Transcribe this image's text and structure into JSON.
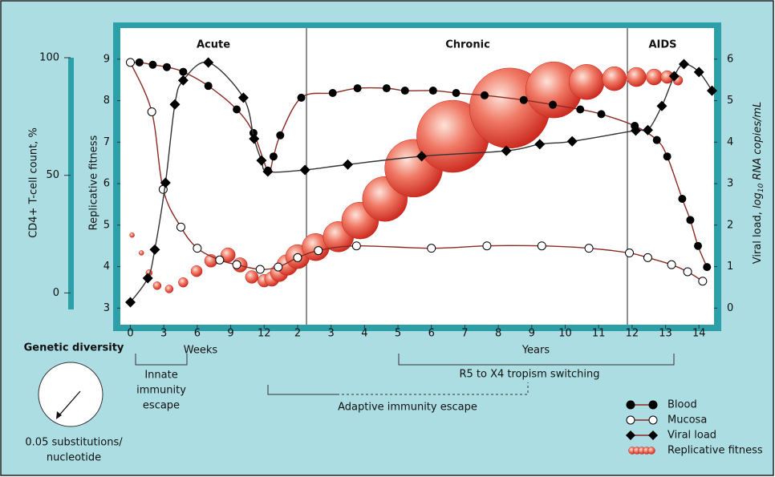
{
  "chart_data": {
    "type": "line",
    "phases": [
      "Acute",
      "Chronic",
      "AIDS"
    ],
    "xlabel_weeks": "Weeks",
    "xlabel_years": "Years",
    "ylabel": "Replicative fitness",
    "y2label": [
      "Viral load, ",
      "log",
      "10",
      " RNA copies/mL"
    ],
    "y3label": "CD4+ T-cell count, %",
    "xlim": [
      -0.3,
      17.45
    ],
    "xticks": [
      0,
      {
        "value": 1,
        "label": "3"
      },
      {
        "value": 2,
        "label": "6"
      },
      {
        "value": 3,
        "label": "9"
      },
      {
        "value": 4,
        "label": "12"
      },
      {
        "value": 5,
        "label": "2"
      },
      {
        "value": 6,
        "label": "3"
      },
      {
        "value": 7,
        "label": "4"
      },
      {
        "value": 8,
        "label": "5"
      },
      {
        "value": 9,
        "label": "6"
      },
      {
        "value": 10,
        "label": "7"
      },
      {
        "value": 11,
        "label": "8"
      },
      {
        "value": 12,
        "label": "9"
      },
      {
        "value": 13,
        "label": "10"
      },
      {
        "value": 14,
        "label": "11"
      },
      {
        "value": 15,
        "label": "12"
      },
      {
        "value": 16,
        "label": "13"
      },
      {
        "value": 17,
        "label": "14"
      }
    ],
    "ylim": [
      2.6,
      9.75
    ],
    "yticks": [
      3,
      4,
      5,
      6,
      7,
      8,
      9
    ],
    "y2lim": [
      -0.4,
      6.75
    ],
    "y2ticks": [
      0,
      1,
      2,
      3,
      4,
      5,
      6
    ],
    "y3lim": [
      -13.5,
      112.6
    ],
    "y3ticks": [
      0,
      50,
      100
    ],
    "series": [
      {
        "name": "Blood",
        "color": "#000000",
        "marker": "filled-circle",
        "axis": "y3",
        "x": [
          0,
          0.27,
          0.67,
          1.09,
          1.58,
          2.33,
          3.18,
          3.68,
          4.11,
          4.28,
          4.48,
          5.11,
          6.05,
          6.79,
          7.66,
          8.21,
          9.05,
          9.74,
          10.59,
          11.76,
          12.63,
          13.45,
          14.08,
          15.08,
          15.74,
          16.05,
          16.5,
          16.74,
          16.97,
          17.24
        ],
        "values": [
          98,
          98,
          97,
          96,
          94,
          88,
          78,
          68,
          52,
          58,
          67,
          83,
          85,
          87,
          87,
          86,
          86,
          85,
          84,
          82,
          80,
          78,
          76,
          71,
          65,
          58,
          40,
          31,
          20,
          11
        ]
      },
      {
        "name": "Mucosa",
        "color": "#000000",
        "marker": "open-circle",
        "axis": "y3",
        "x": [
          0,
          0.64,
          0.98,
          1.51,
          2.0,
          2.67,
          3.18,
          3.88,
          4.42,
          5.0,
          5.62,
          6.76,
          9.0,
          10.66,
          12.3,
          13.71,
          14.92,
          15.47,
          16.18,
          16.66,
          17.11
        ],
        "values": [
          98,
          77,
          44,
          28,
          19,
          14,
          12,
          10,
          11,
          15,
          18,
          20,
          19,
          20,
          20,
          19,
          17,
          15,
          12,
          9,
          5
        ]
      },
      {
        "name": "Viral load",
        "color": "#000000",
        "marker": "diamond",
        "axis": "y2",
        "x": [
          0,
          0.52,
          0.73,
          1.05,
          1.33,
          1.58,
          2.33,
          3.38,
          3.7,
          3.92,
          4.11,
          5.22,
          6.5,
          8.71,
          11.24,
          12.24,
          13.21,
          15.11,
          15.47,
          15.89,
          16.26,
          16.55,
          17.0,
          17.39
        ],
        "values": [
          0.14,
          0.72,
          1.41,
          3.02,
          4.91,
          5.49,
          5.92,
          5.07,
          4.08,
          3.56,
          3.29,
          3.33,
          3.46,
          3.66,
          3.79,
          3.95,
          4.02,
          4.28,
          4.29,
          4.87,
          5.59,
          5.88,
          5.69,
          5.24
        ]
      },
      {
        "name": "Replicative fitness",
        "color": "#e8473a",
        "marker": "bubble",
        "axis": "y",
        "x": [
          0.05,
          0.33,
          0.56,
          0.8,
          1.16,
          1.58,
          1.98,
          2.41,
          2.92,
          3.28,
          3.63,
          4.0,
          4.23,
          4.45,
          4.69,
          5.0,
          5.54,
          6.22,
          6.87,
          7.61,
          8.47,
          9.64,
          11.34,
          12.66,
          13.64,
          14.47,
          15.13,
          15.66,
          16.05,
          16.37
        ],
        "values": [
          4.76,
          4.33,
          3.85,
          3.54,
          3.46,
          3.62,
          3.89,
          4.14,
          4.28,
          4.04,
          3.75,
          3.66,
          3.7,
          3.85,
          4.04,
          4.24,
          4.47,
          4.72,
          5.11,
          5.63,
          6.37,
          7.14,
          7.82,
          8.26,
          8.45,
          8.53,
          8.57,
          8.57,
          8.57,
          8.49
        ],
        "sizes": [
          3,
          3,
          4,
          5,
          5,
          6,
          7,
          8,
          9,
          9,
          8,
          8,
          9,
          11,
          13,
          15,
          17,
          19,
          23,
          28,
          36,
          45,
          50,
          35,
          22,
          15,
          12,
          10,
          8,
          6
        ]
      }
    ],
    "annotations": {
      "innate": [
        "Innate",
        "immunity",
        "escape"
      ],
      "tropism": "R5 to X4 tropism switching",
      "adaptive": "Adaptive immunity escape",
      "genetic_diversity": "Genetic diversity",
      "scale": [
        "0.05 substitutions/",
        "nucleotide"
      ]
    }
  }
}
